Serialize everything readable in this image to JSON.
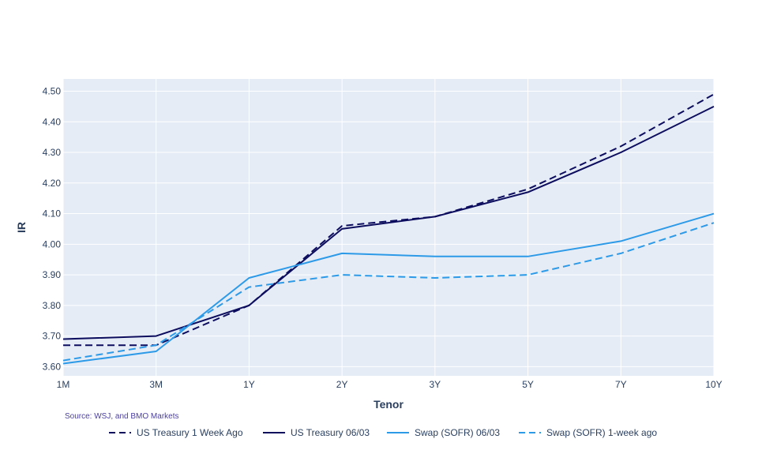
{
  "chart_data": {
    "type": "line",
    "xlabel": "Tenor",
    "ylabel": "IR",
    "categories": [
      "1M",
      "3M",
      "1Y",
      "2Y",
      "3Y",
      "5Y",
      "7Y",
      "10Y"
    ],
    "y_ticks": [
      "3.60",
      "3.70",
      "3.80",
      "3.90",
      "4.00",
      "4.10",
      "4.20",
      "4.30",
      "4.40",
      "4.50"
    ],
    "ylim": [
      3.57,
      4.54
    ],
    "grid": true,
    "legend_position": "bottom",
    "series": [
      {
        "name": "US Treasury 1 Week Ago",
        "color": "#0d0d5e",
        "dash": "dash",
        "values": [
          3.67,
          3.67,
          3.8,
          4.06,
          4.09,
          4.18,
          4.32,
          4.49
        ]
      },
      {
        "name": "US Treasury 06/03",
        "color": "#0d0d5e",
        "dash": "solid",
        "values": [
          3.69,
          3.7,
          3.8,
          4.05,
          4.09,
          4.17,
          4.3,
          4.45
        ]
      },
      {
        "name": "Swap (SOFR) 06/03",
        "color": "#2d9ae8",
        "dash": "solid",
        "values": [
          3.61,
          3.65,
          3.89,
          3.97,
          3.96,
          3.96,
          4.01,
          4.1
        ]
      },
      {
        "name": "Swap (SOFR) 1-week ago",
        "color": "#2d9ae8",
        "dash": "dash",
        "values": [
          3.62,
          3.67,
          3.86,
          3.9,
          3.89,
          3.9,
          3.97,
          4.07
        ]
      }
    ],
    "annotations": [
      "Source: WSJ, and BMO Markets"
    ]
  }
}
